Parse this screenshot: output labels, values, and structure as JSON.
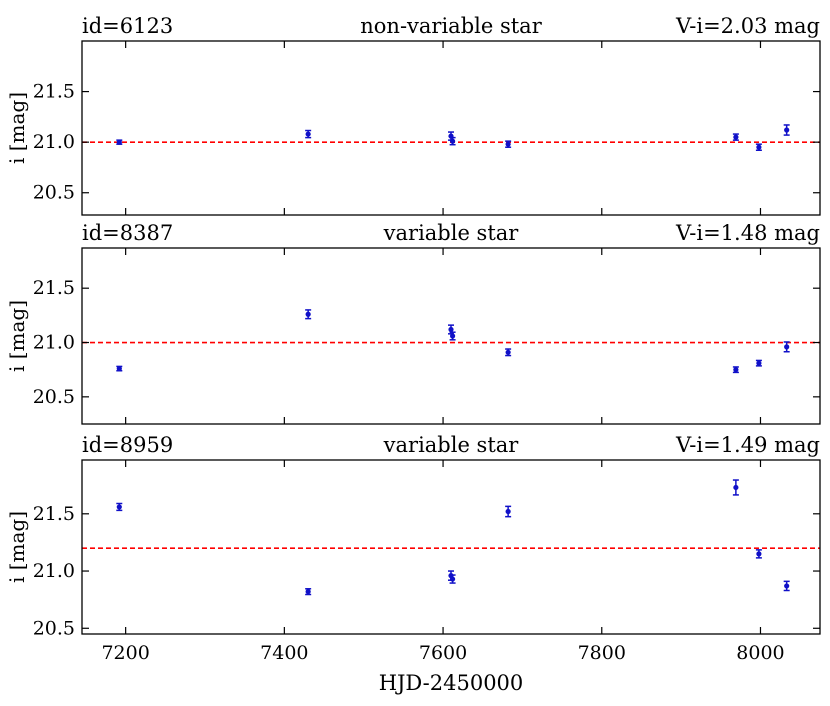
{
  "chart_data": {
    "type": "scatter",
    "xlabel": "HJD-2450000",
    "xlim": [
      7145,
      8075
    ],
    "xticks": [
      7200,
      7400,
      7600,
      7800,
      8000
    ],
    "colors": {
      "points": "#1010c8",
      "reference_line": "#ff0000"
    },
    "panels": [
      {
        "id_label": "id=6123",
        "class_label": "non-variable star",
        "color_label": "V-i=2.03 mag",
        "ylabel": "i [mag]",
        "ylim": [
          20.28,
          22.0
        ],
        "yticks": [
          20.5,
          21.0,
          21.5
        ],
        "reference_mag": 21.0,
        "points": [
          {
            "x": 7192,
            "y": 21.0,
            "err": 0.02
          },
          {
            "x": 7430,
            "y": 21.08,
            "err": 0.035
          },
          {
            "x": 7610,
            "y": 21.06,
            "err": 0.04
          },
          {
            "x": 7612,
            "y": 21.01,
            "err": 0.035
          },
          {
            "x": 7682,
            "y": 20.98,
            "err": 0.03
          },
          {
            "x": 7969,
            "y": 21.05,
            "err": 0.03
          },
          {
            "x": 7998,
            "y": 20.95,
            "err": 0.03
          },
          {
            "x": 8033,
            "y": 21.12,
            "err": 0.05
          }
        ]
      },
      {
        "id_label": "id=8387",
        "class_label": "variable star",
        "color_label": "V-i=1.48 mag",
        "ylabel": "i [mag]",
        "ylim": [
          20.25,
          21.87
        ],
        "yticks": [
          20.5,
          21.0,
          21.5
        ],
        "reference_mag": 21.0,
        "points": [
          {
            "x": 7192,
            "y": 20.76,
            "err": 0.02
          },
          {
            "x": 7430,
            "y": 21.26,
            "err": 0.04
          },
          {
            "x": 7610,
            "y": 21.12,
            "err": 0.04
          },
          {
            "x": 7612,
            "y": 21.06,
            "err": 0.035
          },
          {
            "x": 7682,
            "y": 20.91,
            "err": 0.03
          },
          {
            "x": 7969,
            "y": 20.75,
            "err": 0.025
          },
          {
            "x": 7998,
            "y": 20.81,
            "err": 0.025
          },
          {
            "x": 8033,
            "y": 20.96,
            "err": 0.045
          }
        ]
      },
      {
        "id_label": "id=8959",
        "class_label": "variable star",
        "color_label": "V-i=1.49 mag",
        "ylabel": "i [mag]",
        "ylim": [
          20.45,
          21.97
        ],
        "yticks": [
          20.5,
          21.0,
          21.5
        ],
        "reference_mag": 21.2,
        "points": [
          {
            "x": 7192,
            "y": 21.56,
            "err": 0.03
          },
          {
            "x": 7430,
            "y": 20.82,
            "err": 0.025
          },
          {
            "x": 7610,
            "y": 20.96,
            "err": 0.04
          },
          {
            "x": 7612,
            "y": 20.93,
            "err": 0.035
          },
          {
            "x": 7682,
            "y": 21.52,
            "err": 0.045
          },
          {
            "x": 7969,
            "y": 21.73,
            "err": 0.065
          },
          {
            "x": 7998,
            "y": 21.15,
            "err": 0.035
          },
          {
            "x": 8033,
            "y": 20.87,
            "err": 0.04
          }
        ]
      }
    ]
  }
}
